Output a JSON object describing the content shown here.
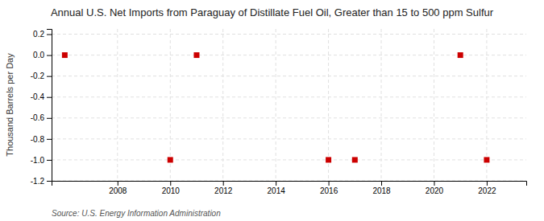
{
  "chart_data": {
    "type": "scatter",
    "title": "Annual U.S. Net Imports from Paraguay of Distillate Fuel Oil, Greater than 15 to 500 ppm Sulfur",
    "ylabel": "Thousand Barrels per Day",
    "source": "Source: U.S. Energy Information Administration",
    "x": [
      2006,
      2010,
      2011,
      2016,
      2017,
      2021,
      2022
    ],
    "values": [
      0,
      -1,
      0,
      -1,
      -1,
      0,
      -1
    ],
    "color": "#cc0000",
    "marker": "square",
    "xlim": [
      2005.5,
      2023.5
    ],
    "ylim": [
      -1.2,
      0.25
    ],
    "xticks": [
      2008,
      2010,
      2012,
      2014,
      2016,
      2018,
      2020,
      2022
    ],
    "yticks": [
      0.2,
      {
        "value": 0,
        "label": "0.0"
      },
      -0.2,
      -0.4,
      -0.6,
      -0.8,
      {
        "value": -1,
        "label": "-1.0"
      },
      -1.2
    ],
    "grid": true
  }
}
